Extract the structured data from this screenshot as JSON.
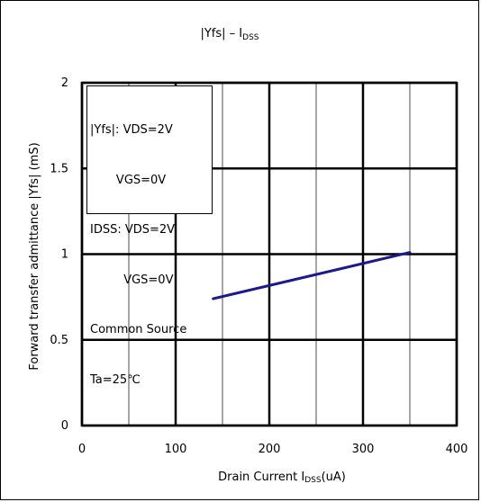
{
  "chart_data": {
    "type": "line",
    "title": "|Yfs| – I",
    "title_sub": "DSS",
    "xlabel": "Drain Current  I",
    "xlabel_sub": "DSS",
    "xlabel_unit": "(uA)",
    "ylabel": "Forward transfer admittance  |Yfs| (mS)",
    "xlim": [
      0,
      400
    ],
    "ylim": [
      0,
      2
    ],
    "x_ticks": [
      "0",
      "100",
      "200",
      "300",
      "400"
    ],
    "y_ticks": [
      "0",
      "0.5",
      "1",
      "1.5",
      "2"
    ],
    "x_minor_grid": [
      50,
      150,
      250,
      350
    ],
    "grid": true,
    "series": [
      {
        "color": "#1a1a8c",
        "x": [
          140,
          350
        ],
        "y": [
          0.74,
          1.01
        ]
      }
    ],
    "legend_lines": [
      "|Yfs|: VDS=2V",
      "       VGS=0V",
      "IDSS: VDS=2V",
      "         VGS=0V",
      "Common Source",
      "Ta=25℃"
    ],
    "legend_placement": "top-left"
  }
}
